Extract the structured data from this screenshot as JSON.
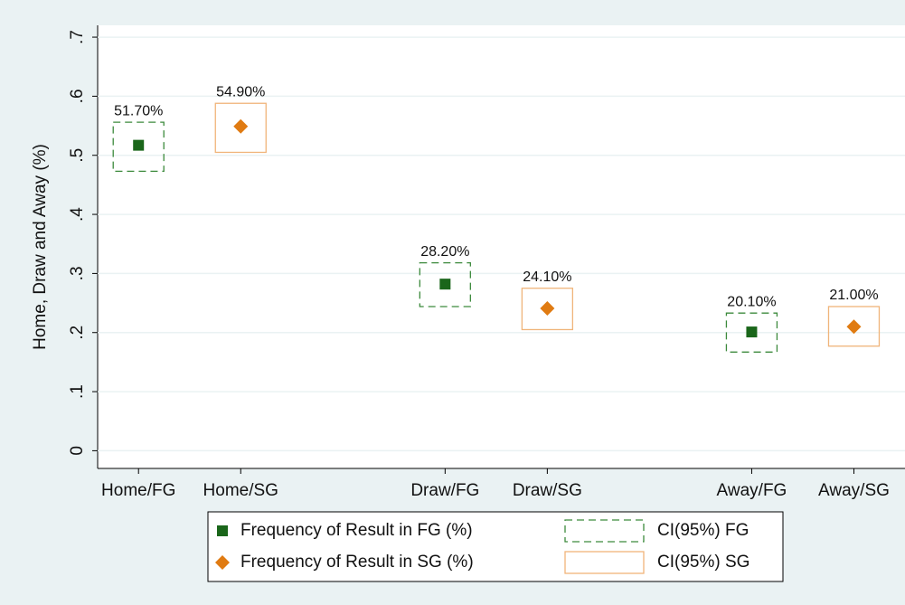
{
  "chart_data": {
    "type": "scatter",
    "ylabel": "Home, Draw and Away (%)",
    "categories": [
      "Home/FG",
      "Home/SG",
      "Draw/FG",
      "Draw/SG",
      "Away/FG",
      "Away/SG"
    ],
    "x": [
      1,
      2,
      4,
      5,
      7,
      8
    ],
    "xlim": [
      0.6,
      8.5
    ],
    "ylim": [
      -0.03,
      0.72
    ],
    "yticks": [
      0,
      {
        "value": 0.1,
        "label": ".1"
      },
      {
        "value": 0.2,
        "label": ".2"
      },
      {
        "value": 0.3,
        "label": ".3"
      },
      {
        "value": 0.4,
        "label": ".4"
      },
      {
        "value": 0.5,
        "label": ".5"
      },
      {
        "value": 0.6,
        "label": ".6"
      },
      {
        "value": 0.7,
        "label": ".7"
      }
    ],
    "grid": true,
    "series": [
      {
        "name": "Frequency of Result in FG (%)",
        "color": "#1a661a",
        "marker": "square",
        "values": [
          0.517,
          null,
          0.282,
          null,
          0.201,
          null
        ],
        "value_labels": [
          "51.70%",
          null,
          "28.20%",
          null,
          "20.10%",
          null
        ]
      },
      {
        "name": "Frequency of Result in SG (%)",
        "color": "#e07b12",
        "marker": "diamond",
        "values": [
          null,
          0.549,
          null,
          0.241,
          null,
          0.21
        ],
        "value_labels": [
          null,
          "54.90%",
          null,
          "24.10%",
          null,
          "21.00%"
        ]
      }
    ],
    "ci": [
      {
        "name": "CI(95%) FG",
        "color": "#3c8a3c",
        "dashed": true,
        "lower": [
          0.473,
          null,
          0.244,
          null,
          0.167,
          null
        ],
        "upper": [
          0.556,
          null,
          0.318,
          null,
          0.233,
          null
        ]
      },
      {
        "name": "CI(95%) SG",
        "color": "#f0b47a",
        "dashed": false,
        "lower": [
          null,
          0.505,
          null,
          0.205,
          null,
          0.177
        ],
        "upper": [
          null,
          0.588,
          null,
          0.275,
          null,
          0.244
        ]
      }
    ]
  }
}
